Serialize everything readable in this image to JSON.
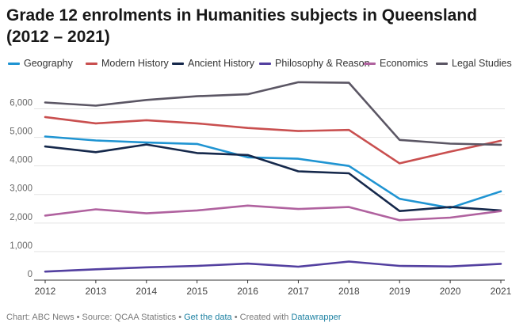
{
  "title_line1": "Grade 12 enrolments in Humanities subjects in Queensland",
  "title_line2": "(2012 – 2021)",
  "footer": {
    "text": "Chart: ABC News • Source: QCAA Statistics •",
    "get_data": "Get the data",
    "separator": "• Created with",
    "datawrapper": "Datawrapper"
  },
  "chart_data": {
    "type": "line",
    "title": "Grade 12 enrolments in Humanities subjects in Queensland (2012 – 2021)",
    "x": [
      2012,
      2013,
      2014,
      2015,
      2016,
      2017,
      2018,
      2019,
      2020,
      2021
    ],
    "x_tick_labels": [
      "2012",
      "2013",
      "2014",
      "2015",
      "2016",
      "2017",
      "2018",
      "2019",
      "2020",
      "2021"
    ],
    "y_ticks": [
      0,
      1000,
      2000,
      3000,
      4000,
      5000,
      6000
    ],
    "y_tick_labels": [
      "0",
      "1,000",
      "2,000",
      "3,000",
      "4,000",
      "5,000",
      "6,000"
    ],
    "ylim": [
      0,
      6900
    ],
    "grid": true,
    "legend_position": "top",
    "series": [
      {
        "name": "Geography",
        "color": "#1f94d2",
        "values": [
          5030,
          4890,
          4820,
          4770,
          4300,
          4250,
          4000,
          2850,
          2530,
          3110
        ]
      },
      {
        "name": "Modern History",
        "color": "#c94f4f",
        "values": [
          5710,
          5490,
          5600,
          5490,
          5330,
          5220,
          5260,
          4090,
          4500,
          4880
        ]
      },
      {
        "name": "Ancient History",
        "color": "#15284b",
        "values": [
          4680,
          4480,
          4750,
          4450,
          4380,
          3810,
          3740,
          2420,
          2560,
          2440
        ]
      },
      {
        "name": "Philosophy & Reason",
        "color": "#5340a0",
        "values": [
          300,
          380,
          450,
          500,
          580,
          470,
          650,
          500,
          480,
          570
        ]
      },
      {
        "name": "Economics",
        "color": "#b0629f",
        "values": [
          2260,
          2480,
          2340,
          2440,
          2610,
          2490,
          2560,
          2100,
          2190,
          2420
        ]
      },
      {
        "name": "Legal Studies",
        "color": "#5b5664",
        "values": [
          6220,
          6110,
          6310,
          6440,
          6510,
          6930,
          6910,
          4910,
          4780,
          4740
        ]
      }
    ]
  }
}
